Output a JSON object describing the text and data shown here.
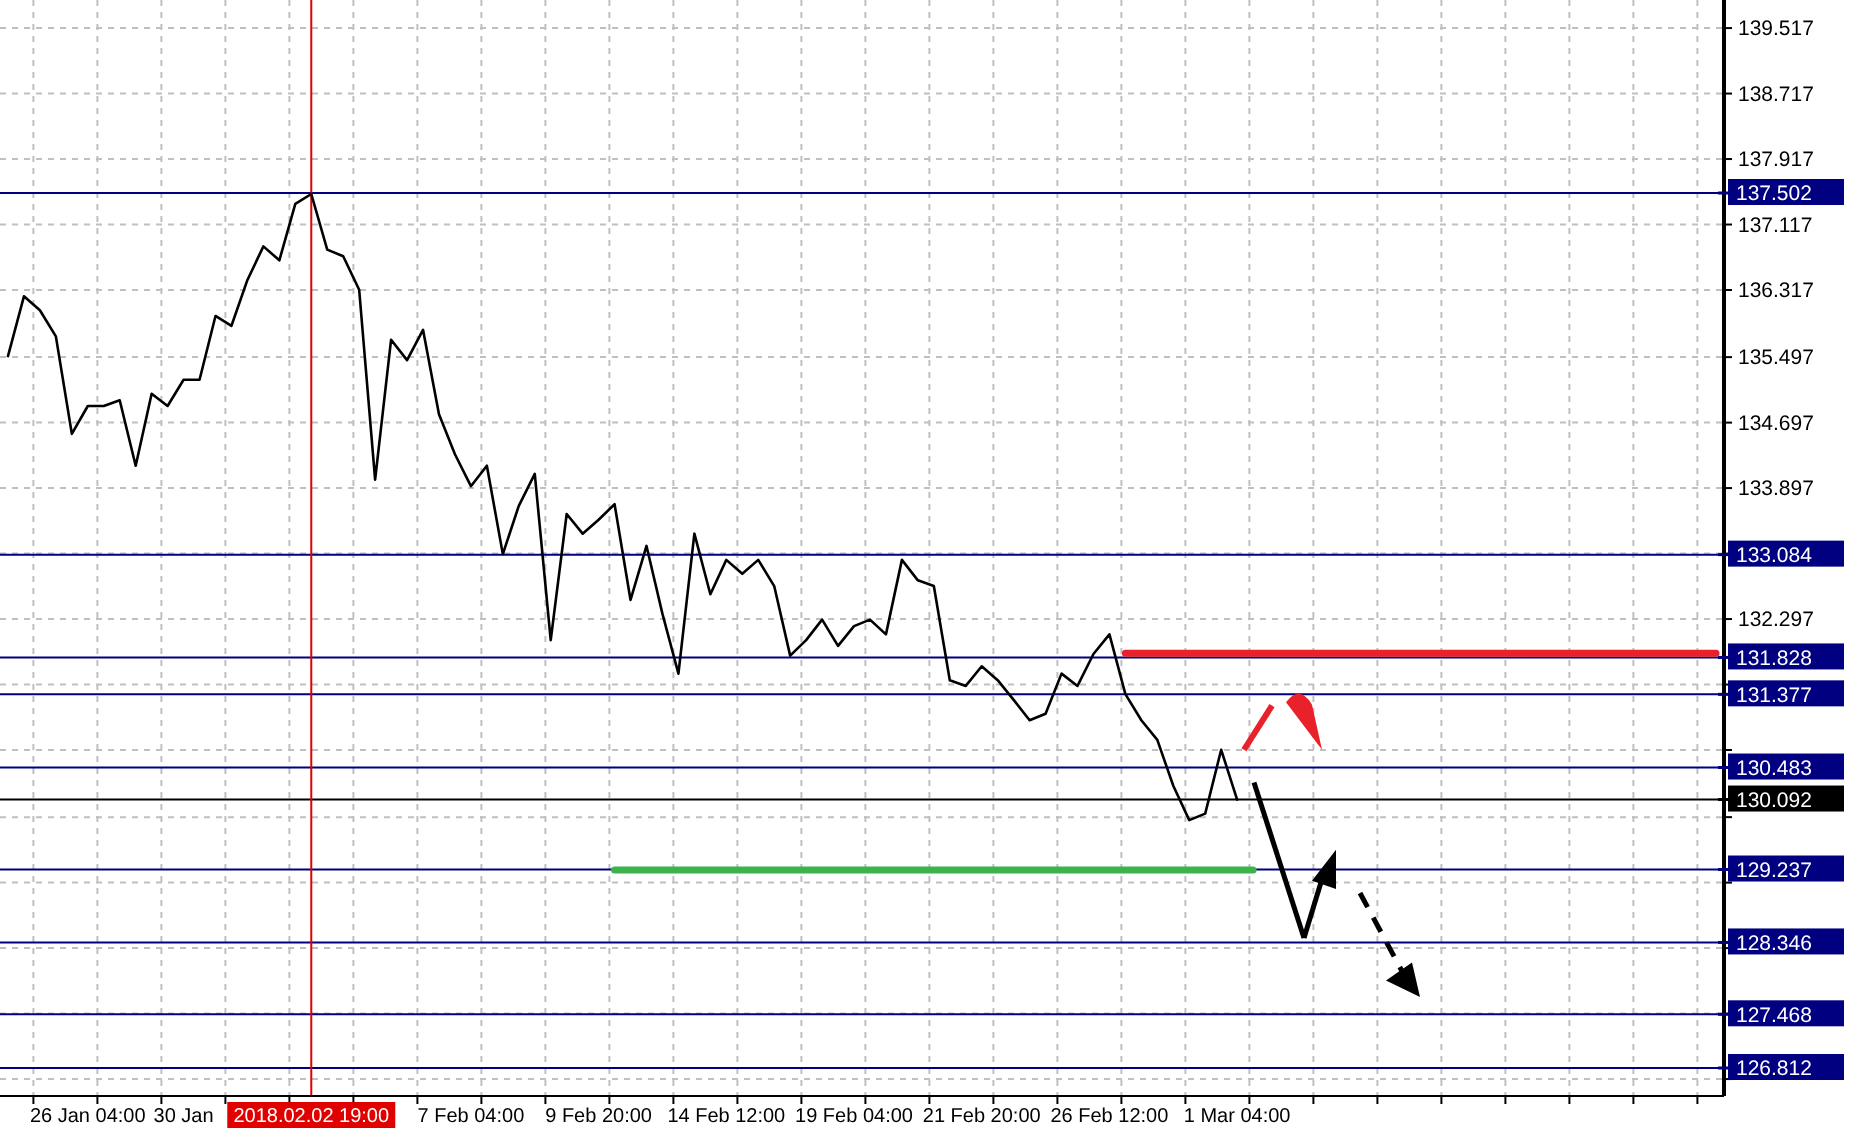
{
  "chart_data": {
    "type": "line",
    "grid": true,
    "marker": "none",
    "line_style": "solid",
    "categories": [
      null,
      null,
      null,
      null,
      null,
      "26 Jan 04:00",
      null,
      null,
      null,
      null,
      null,
      "30 Jan",
      null,
      null,
      null,
      null,
      null,
      null,
      null,
      "2018.02.02 19:00",
      null,
      null,
      null,
      null,
      null,
      null,
      null,
      null,
      null,
      "7 Feb 04:00",
      null,
      null,
      null,
      null,
      null,
      null,
      null,
      "9 Feb 20:00",
      null,
      null,
      null,
      null,
      null,
      null,
      null,
      "14 Feb 12:00",
      null,
      null,
      null,
      null,
      null,
      null,
      null,
      "19 Feb 04:00",
      null,
      null,
      null,
      null,
      null,
      null,
      null,
      "21 Feb 20:00",
      null,
      null,
      null,
      null,
      null,
      null,
      null,
      "26 Feb 12:00",
      null,
      null,
      null,
      null,
      null,
      null,
      null,
      "1 Mar 04:00",
      null,
      null,
      null,
      null,
      null,
      null,
      null,
      null,
      null,
      null,
      null,
      null,
      null,
      null,
      null,
      null,
      null,
      null,
      null,
      null,
      null,
      null,
      null,
      null,
      null,
      null,
      null,
      null,
      null,
      null
    ],
    "ylim": [
      126.47,
      139.86
    ],
    "yticks": [
      139.517,
      138.717,
      137.917,
      137.117,
      136.317,
      135.497,
      134.697,
      133.897,
      {
        "value": 133.097,
        "label": null
      },
      132.297,
      {
        "value": 131.497,
        "label": null
      },
      {
        "value": 130.697,
        "label": null
      },
      {
        "value": 129.877,
        "label": null
      },
      {
        "value": 129.077,
        "label": null
      },
      {
        "value": 128.277,
        "label": null
      },
      {
        "value": 127.477,
        "label": null
      },
      {
        "value": 126.677,
        "label": null
      }
    ],
    "series": [
      {
        "color": "#000000",
        "values": [
          135.51,
          136.24,
          136.07,
          135.75,
          134.56,
          134.9,
          134.9,
          134.97,
          134.17,
          135.05,
          134.9,
          135.22,
          135.22,
          136.0,
          135.88,
          136.44,
          136.85,
          136.68,
          137.37,
          137.49,
          136.81,
          136.73,
          136.32,
          134.0,
          135.71,
          135.46,
          135.83,
          134.8,
          134.31,
          133.92,
          134.17,
          133.09,
          133.68,
          134.07,
          132.04,
          133.58,
          133.34,
          133.51,
          133.7,
          132.53,
          133.19,
          132.36,
          131.63,
          133.34,
          132.6,
          133.02,
          132.85,
          133.02,
          132.7,
          131.85,
          132.04,
          132.29,
          131.97,
          132.21,
          132.29,
          132.11,
          133.02,
          132.77,
          132.7,
          131.55,
          131.48,
          131.72,
          131.55,
          131.31,
          131.06,
          131.14,
          131.63,
          131.48,
          131.87,
          132.11,
          131.38,
          131.06,
          130.82,
          130.26,
          129.84,
          129.92,
          130.7,
          130.09,
          null,
          null,
          null,
          null,
          null,
          null,
          null,
          null,
          null,
          null,
          null,
          null,
          null,
          null,
          null,
          null,
          null,
          null,
          null,
          null,
          null,
          null,
          null,
          null,
          null,
          null,
          null,
          null,
          null,
          null
        ]
      },
      {
        "color": "#e8212b",
        "values": [
          null,
          null,
          null,
          null,
          null,
          null,
          null,
          null,
          null,
          null,
          null,
          null,
          null,
          null,
          null,
          null,
          null,
          null,
          null,
          null,
          null,
          null,
          null,
          null,
          null,
          null,
          null,
          null,
          null,
          null,
          null,
          null,
          null,
          null,
          null,
          null,
          null,
          null,
          null,
          null,
          null,
          null,
          null,
          null,
          null,
          null,
          null,
          null,
          null,
          null,
          null,
          null,
          null,
          null,
          null,
          null,
          null,
          null,
          null,
          null,
          null,
          null,
          null,
          null,
          null,
          null,
          null,
          null,
          null,
          null,
          131.88,
          131.88,
          131.88,
          131.88,
          131.88,
          131.88,
          131.88,
          131.88,
          131.88,
          131.88,
          131.88,
          131.88,
          131.88,
          131.88,
          131.88,
          131.88,
          131.88,
          131.88,
          131.88,
          131.88,
          131.88,
          131.88,
          131.88,
          131.88,
          131.88,
          131.88,
          131.88,
          131.88,
          131.88,
          131.88,
          131.88,
          131.88,
          131.88,
          131.88,
          131.88,
          131.88,
          131.88,
          131.88
        ]
      },
      {
        "color": "#3cb44b",
        "values": [
          null,
          null,
          null,
          null,
          null,
          null,
          null,
          null,
          null,
          null,
          null,
          null,
          null,
          null,
          null,
          null,
          null,
          null,
          null,
          null,
          null,
          null,
          null,
          null,
          null,
          null,
          null,
          null,
          null,
          null,
          null,
          null,
          null,
          null,
          null,
          null,
          null,
          null,
          129.23,
          129.23,
          129.23,
          129.23,
          129.23,
          129.23,
          129.23,
          129.23,
          129.23,
          129.23,
          129.23,
          129.23,
          129.23,
          129.23,
          129.23,
          129.23,
          129.23,
          129.23,
          129.23,
          129.23,
          129.23,
          129.23,
          129.23,
          129.23,
          129.23,
          129.23,
          129.23,
          129.23,
          129.23,
          129.23,
          129.23,
          129.23,
          129.23,
          129.23,
          129.23,
          129.23,
          129.23,
          129.23,
          129.23,
          129.23,
          129.23,
          null,
          null,
          null,
          null,
          null,
          null,
          null,
          null,
          null,
          null,
          null,
          null,
          null,
          null,
          null,
          null,
          null,
          null,
          null,
          null,
          null,
          null,
          null,
          null,
          null,
          null,
          null,
          null,
          null
        ]
      }
    ],
    "ref_lines": [
      {
        "axis": "x",
        "value": "2018.02.02 19:00",
        "color": "#e00000"
      },
      {
        "axis": "y",
        "value": 137.502,
        "label": "137.502",
        "color": "#000080"
      },
      {
        "axis": "y",
        "value": 133.084,
        "label": "133.084",
        "color": "#000080"
      },
      {
        "axis": "y",
        "value": 131.828,
        "label": "131.828",
        "color": "#000080"
      },
      {
        "axis": "y",
        "value": 131.377,
        "label": "131.377",
        "color": "#000080"
      },
      {
        "axis": "y",
        "value": 130.483,
        "label": "130.483",
        "color": "#000080"
      },
      {
        "axis": "y",
        "value": 130.092,
        "label": "130.092",
        "color": "#000000"
      },
      {
        "axis": "y",
        "value": 129.237,
        "label": "129.237",
        "color": "#000080"
      },
      {
        "axis": "y",
        "value": 128.346,
        "label": "128.346",
        "color": "#000080"
      },
      {
        "axis": "y",
        "value": 127.468,
        "label": "127.468",
        "color": "#000080"
      },
      {
        "axis": "y",
        "value": 126.812,
        "label": "126.812",
        "color": "#000080"
      }
    ]
  }
}
